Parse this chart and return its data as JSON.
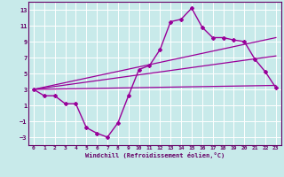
{
  "background_color": "#c8eaea",
  "grid_color": "#ffffff",
  "line_color": "#990099",
  "xlabel": "Windchill (Refroidissement éolien,°C)",
  "xlim": [
    -0.5,
    23.5
  ],
  "ylim": [
    -4,
    14
  ],
  "yticks": [
    -3,
    -1,
    1,
    3,
    5,
    7,
    9,
    11,
    13
  ],
  "xticks": [
    0,
    1,
    2,
    3,
    4,
    5,
    6,
    7,
    8,
    9,
    10,
    11,
    12,
    13,
    14,
    15,
    16,
    17,
    18,
    19,
    20,
    21,
    22,
    23
  ],
  "series": [
    {
      "x": [
        0,
        1,
        2,
        3,
        4,
        5,
        6,
        7,
        8,
        9,
        10,
        11,
        12,
        13,
        14,
        15,
        16,
        17,
        18,
        19,
        20,
        21,
        22,
        23
      ],
      "y": [
        3.0,
        2.2,
        2.2,
        1.2,
        1.2,
        -1.8,
        -2.5,
        -3.0,
        -1.2,
        2.2,
        5.5,
        6.0,
        8.0,
        11.5,
        11.8,
        13.2,
        10.8,
        9.5,
        9.5,
        9.2,
        9.0,
        6.8,
        5.2,
        3.2
      ],
      "marker": true,
      "linewidth": 1.0
    },
    {
      "x": [
        0,
        23
      ],
      "y": [
        3.0,
        9.5
      ],
      "marker": false,
      "linewidth": 0.9
    },
    {
      "x": [
        0,
        23
      ],
      "y": [
        3.0,
        7.2
      ],
      "marker": false,
      "linewidth": 0.9
    },
    {
      "x": [
        0,
        23
      ],
      "y": [
        3.0,
        3.5
      ],
      "marker": false,
      "linewidth": 0.9
    }
  ]
}
